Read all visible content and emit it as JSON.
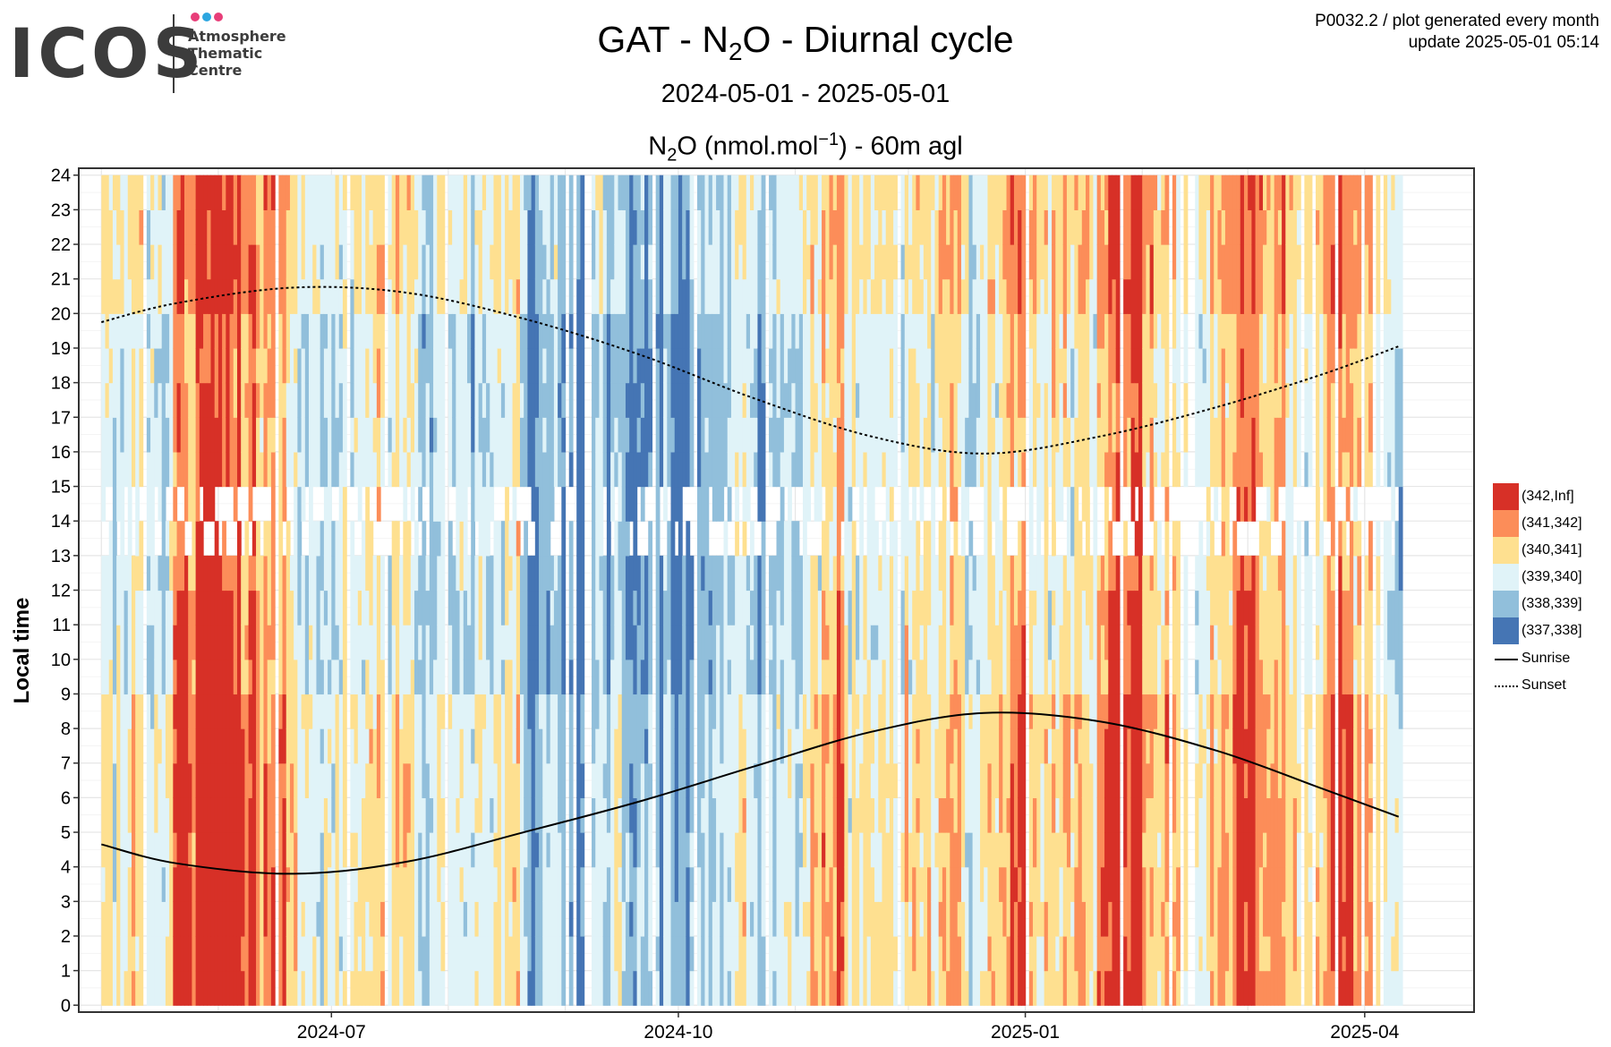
{
  "logo": {
    "word": "ICOS",
    "sub_lines": [
      "Atmosphere",
      "Thematic",
      "Centre"
    ],
    "dot_colors": [
      "#e83e79",
      "#2ca6e0",
      "#e83e79"
    ]
  },
  "header": {
    "title_pre": "GAT - N",
    "title_sub": "2",
    "title_post": "O - Diurnal cycle",
    "subtitle": "2024-05-01 - 2025-05-01",
    "plot_title_pre": "N",
    "plot_title_sub": "2",
    "plot_title_mid": "O (nmol.mol",
    "plot_title_sup": "−1",
    "plot_title_post": ") - 60m agl"
  },
  "meta": {
    "line1": "P0032.2 / plot generated every month",
    "line2": "update  2025-05-01 05:14"
  },
  "chart_data": {
    "type": "heatmap",
    "ylabel": "Local time",
    "x_tick_labels": [
      "2024-07",
      "2024-10",
      "2025-01",
      "2025-04"
    ],
    "x_ticks": [
      "2024-07-01",
      "2024-10-01",
      "2025-01-01",
      "2025-04-01"
    ],
    "xlim": [
      "2024-04-25",
      "2025-04-30"
    ],
    "data_range": [
      "2024-05-01",
      "2025-04-10"
    ],
    "y_ticks": [
      0,
      1,
      2,
      3,
      4,
      5,
      6,
      7,
      8,
      9,
      10,
      11,
      12,
      13,
      14,
      15,
      16,
      17,
      18,
      19,
      20,
      21,
      22,
      23,
      24
    ],
    "ylim": [
      -0.2,
      24.2
    ],
    "grid": true,
    "legend_position": "right",
    "color_bins": [
      {
        "label": "(342,Inf]",
        "color": "#d73027"
      },
      {
        "label": "(341,342]",
        "color": "#fc8d59"
      },
      {
        "label": "(340,341]",
        "color": "#fee090"
      },
      {
        "label": "(339,340]",
        "color": "#e0f3f8"
      },
      {
        "label": "(338,339]",
        "color": "#91bfdb"
      },
      {
        "label": "(337,338]",
        "color": "#4575b4"
      }
    ],
    "lines": [
      {
        "name": "Sunrise",
        "style": "solid",
        "points": [
          [
            "2024-05-01",
            4.65
          ],
          [
            "2024-05-21",
            4.1
          ],
          [
            "2024-06-21",
            3.8
          ],
          [
            "2024-07-21",
            4.15
          ],
          [
            "2024-08-21",
            5.0
          ],
          [
            "2024-09-21",
            5.9
          ],
          [
            "2024-10-21",
            6.9
          ],
          [
            "2024-11-21",
            7.9
          ],
          [
            "2024-12-21",
            8.45
          ],
          [
            "2025-01-21",
            8.2
          ],
          [
            "2025-02-21",
            7.35
          ],
          [
            "2025-03-21",
            6.25
          ],
          [
            "2025-04-10",
            5.45
          ]
        ]
      },
      {
        "name": "Sunset",
        "style": "dotted",
        "points": [
          [
            "2024-05-01",
            19.75
          ],
          [
            "2024-05-21",
            20.3
          ],
          [
            "2024-06-21",
            20.75
          ],
          [
            "2024-07-21",
            20.6
          ],
          [
            "2024-08-21",
            19.85
          ],
          [
            "2024-09-21",
            18.8
          ],
          [
            "2024-10-21",
            17.55
          ],
          [
            "2024-11-21",
            16.45
          ],
          [
            "2024-12-21",
            15.95
          ],
          [
            "2025-01-21",
            16.45
          ],
          [
            "2025-02-21",
            17.3
          ],
          [
            "2025-03-21",
            18.25
          ],
          [
            "2025-04-10",
            19.05
          ]
        ]
      }
    ],
    "hot_periods": [
      {
        "start": "2024-05-20",
        "end": "2024-06-05",
        "level": 2.3
      },
      {
        "start": "2024-06-06",
        "end": "2024-06-12",
        "level": 1.5
      },
      {
        "start": "2024-06-14",
        "end": "2024-06-20",
        "level": 1.0
      },
      {
        "start": "2024-11-05",
        "end": "2024-11-12",
        "level": 1.6
      },
      {
        "start": "2024-12-28",
        "end": "2025-01-01",
        "level": 1.4
      },
      {
        "start": "2025-01-20",
        "end": "2025-01-30",
        "level": 2.0
      },
      {
        "start": "2025-02-25",
        "end": "2025-03-01",
        "level": 1.4
      },
      {
        "start": "2025-03-22",
        "end": "2025-03-27",
        "level": 1.4
      }
    ],
    "cold_periods": [
      {
        "start": "2024-08-20",
        "end": "2024-09-25",
        "level": -1.1
      },
      {
        "start": "2024-09-26",
        "end": "2024-10-10",
        "level": -1.3
      },
      {
        "start": "2024-10-12",
        "end": "2024-10-25",
        "level": -0.6
      }
    ]
  },
  "legend": {
    "line_labels": [
      "Sunrise",
      "Sunset"
    ]
  }
}
